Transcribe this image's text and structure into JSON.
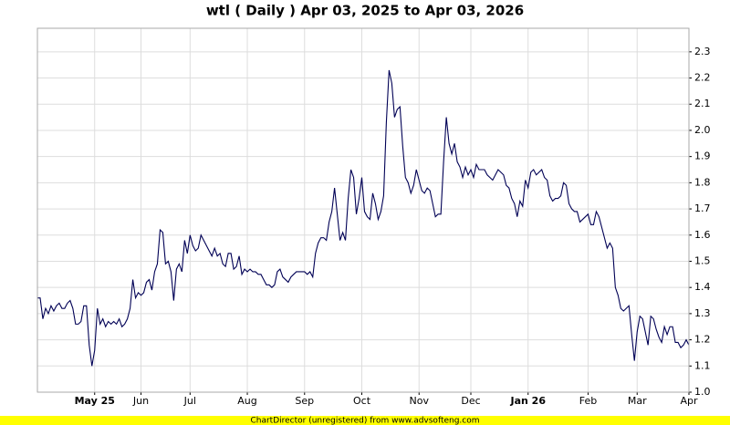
{
  "chart_data": {
    "type": "line",
    "title": "wtl ( Daily ) Apr 03, 2025 to Apr 03, 2026",
    "footer": "ChartDirector (unregistered) from www.advsofteng.com",
    "color": "#000055",
    "grid": true,
    "xlim": [
      0,
      239
    ],
    "ylim": [
      1.0,
      2.39
    ],
    "xticks": [
      {
        "value": 21,
        "label": "May 25"
      },
      {
        "value": 38,
        "label": "Jun"
      },
      {
        "value": 56,
        "label": "Jul"
      },
      {
        "value": 77,
        "label": "Aug"
      },
      {
        "value": 98,
        "label": "Sep"
      },
      {
        "value": 119,
        "label": "Oct"
      },
      {
        "value": 140,
        "label": "Nov"
      },
      {
        "value": 159,
        "label": "Dec"
      },
      {
        "value": 180,
        "label": "Jan 26"
      },
      {
        "value": 202,
        "label": "Feb"
      },
      {
        "value": 220,
        "label": "Mar"
      },
      {
        "value": 239,
        "label": "Apr"
      }
    ],
    "yticks": [
      {
        "value": 1,
        "label": "1.0"
      },
      1.1,
      1.2,
      1.3,
      1.4,
      1.5,
      1.6,
      1.7,
      1.8,
      1.9,
      {
        "value": 2,
        "label": "2.0"
      },
      2.1,
      2.2,
      2.3
    ],
    "values": [
      1.36,
      1.36,
      1.28,
      1.32,
      1.3,
      1.33,
      1.31,
      1.33,
      1.34,
      1.32,
      1.32,
      1.34,
      1.35,
      1.32,
      1.26,
      1.26,
      1.27,
      1.33,
      1.33,
      1.18,
      1.1,
      1.16,
      1.32,
      1.26,
      1.28,
      1.25,
      1.27,
      1.26,
      1.27,
      1.26,
      1.28,
      1.25,
      1.26,
      1.28,
      1.32,
      1.43,
      1.36,
      1.38,
      1.37,
      1.38,
      1.42,
      1.43,
      1.39,
      1.46,
      1.49,
      1.62,
      1.61,
      1.49,
      1.5,
      1.46,
      1.35,
      1.47,
      1.49,
      1.46,
      1.58,
      1.53,
      1.6,
      1.56,
      1.54,
      1.55,
      1.6,
      1.58,
      1.56,
      1.54,
      1.52,
      1.55,
      1.52,
      1.53,
      1.49,
      1.48,
      1.53,
      1.53,
      1.47,
      1.48,
      1.52,
      1.45,
      1.47,
      1.46,
      1.47,
      1.46,
      1.46,
      1.45,
      1.45,
      1.43,
      1.41,
      1.41,
      1.4,
      1.41,
      1.46,
      1.47,
      1.44,
      1.43,
      1.42,
      1.44,
      1.45,
      1.46,
      1.46,
      1.46,
      1.46,
      1.45,
      1.46,
      1.44,
      1.53,
      1.57,
      1.59,
      1.59,
      1.58,
      1.65,
      1.69,
      1.78,
      1.68,
      1.58,
      1.61,
      1.58,
      1.74,
      1.85,
      1.82,
      1.68,
      1.74,
      1.82,
      1.69,
      1.67,
      1.66,
      1.76,
      1.72,
      1.66,
      1.69,
      1.75,
      2.03,
      2.23,
      2.18,
      2.05,
      2.08,
      2.09,
      1.94,
      1.82,
      1.8,
      1.76,
      1.79,
      1.85,
      1.81,
      1.77,
      1.76,
      1.78,
      1.77,
      1.72,
      1.67,
      1.68,
      1.68,
      1.88,
      2.05,
      1.95,
      1.91,
      1.95,
      1.88,
      1.86,
      1.82,
      1.86,
      1.83,
      1.85,
      1.82,
      1.87,
      1.85,
      1.85,
      1.85,
      1.83,
      1.82,
      1.81,
      1.83,
      1.85,
      1.84,
      1.83,
      1.79,
      1.78,
      1.74,
      1.72,
      1.67,
      1.73,
      1.71,
      1.81,
      1.78,
      1.84,
      1.85,
      1.83,
      1.84,
      1.85,
      1.82,
      1.81,
      1.75,
      1.73,
      1.74,
      1.74,
      1.75,
      1.8,
      1.79,
      1.72,
      1.7,
      1.69,
      1.69,
      1.65,
      1.66,
      1.67,
      1.68,
      1.64,
      1.64,
      1.69,
      1.67,
      1.63,
      1.59,
      1.55,
      1.57,
      1.55,
      1.4,
      1.37,
      1.32,
      1.31,
      1.32,
      1.33,
      1.22,
      1.12,
      1.23,
      1.29,
      1.28,
      1.23,
      1.18,
      1.29,
      1.28,
      1.24,
      1.21,
      1.19,
      1.25,
      1.22,
      1.25,
      1.25,
      1.19,
      1.19,
      1.17,
      1.18,
      1.2,
      1.18
    ]
  }
}
